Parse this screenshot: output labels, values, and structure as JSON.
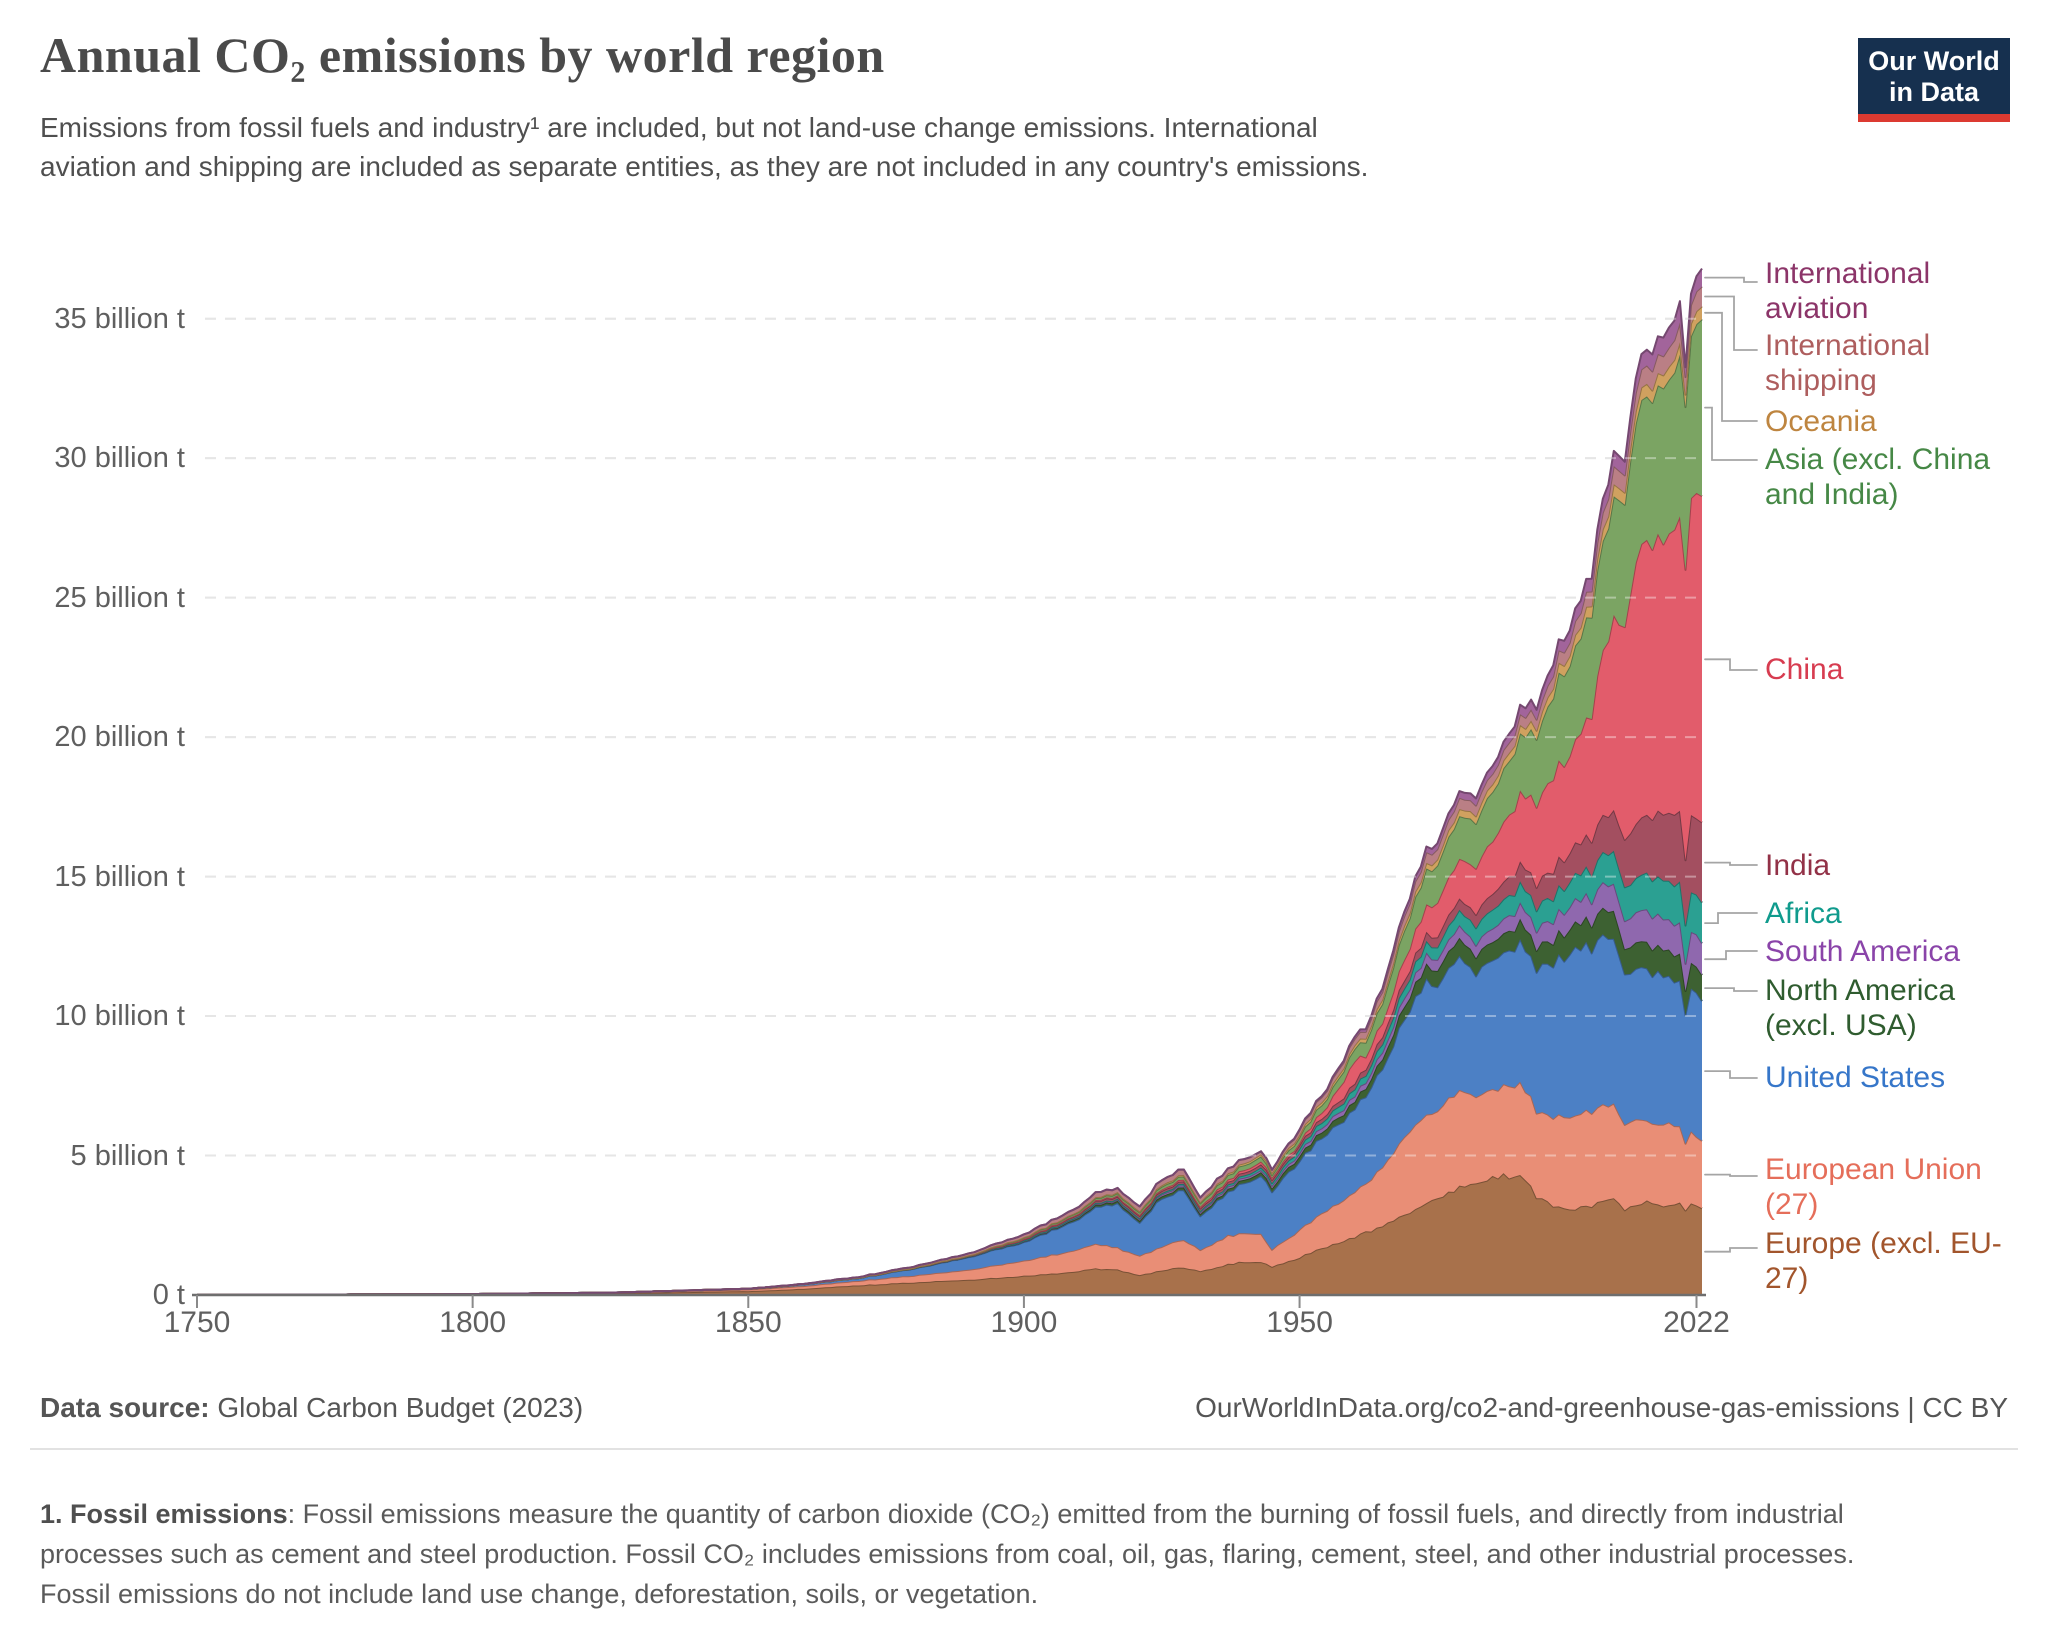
{
  "header": {
    "title": "Annual CO₂ emissions by world region",
    "subtitle": "Emissions from fossil fuels and industry¹ are included, but not land-use change emissions. International aviation and shipping are included as separate entities, as they are not included in any country's emissions."
  },
  "logo": {
    "line1": "Our World",
    "line2": "in Data",
    "bg_color": "#16304F",
    "accent_color": "#DC3A31"
  },
  "chart_data": {
    "type": "area",
    "stacked": true,
    "title": "Annual CO₂ emissions by world region",
    "xlabel": "",
    "ylabel": "",
    "unit": "billion t",
    "xlim": [
      1750,
      2023
    ],
    "ylim": [
      0,
      37.5
    ],
    "grid": "dashed-horizontal",
    "legend_position": "right",
    "xticks": [
      1750,
      1800,
      1850,
      1900,
      1950,
      2022
    ],
    "xtick_labels": [
      "1750",
      "1800",
      "1850",
      "1900",
      "1950",
      "2022"
    ],
    "yticks": [
      0,
      5,
      10,
      15,
      20,
      25,
      30,
      35
    ],
    "ytick_labels": [
      "0 t",
      "5 billion t",
      "10 billion t",
      "15 billion t",
      "20 billion t",
      "25 billion t",
      "30 billion t",
      "35 billion t"
    ],
    "x": [
      1750,
      1775,
      1800,
      1825,
      1850,
      1860,
      1870,
      1880,
      1890,
      1900,
      1910,
      1913,
      1917,
      1921,
      1924,
      1929,
      1932,
      1937,
      1940,
      1943,
      1945,
      1950,
      1955,
      1958,
      1960,
      1962,
      1965,
      1970,
      1973,
      1975,
      1979,
      1982,
      1985,
      1990,
      1993,
      1997,
      2000,
      2003,
      2005,
      2007,
      2009,
      2011,
      2013,
      2015,
      2017,
      2019,
      2020,
      2021,
      2022,
      2023
    ],
    "series": [
      {
        "name": "Europe (excl. EU-27)",
        "color": "#A8714B",
        "label_color": "#A2552C",
        "values": [
          0.009,
          0.015,
          0.028,
          0.06,
          0.14,
          0.22,
          0.35,
          0.45,
          0.55,
          0.68,
          0.85,
          0.95,
          0.9,
          0.7,
          0.85,
          1.0,
          0.85,
          1.1,
          1.2,
          1.2,
          1.0,
          1.35,
          1.75,
          1.95,
          2.1,
          2.25,
          2.5,
          3.0,
          3.3,
          3.5,
          3.9,
          3.95,
          4.2,
          4.35,
          3.55,
          3.15,
          3.1,
          3.2,
          3.3,
          3.4,
          3.1,
          3.3,
          3.3,
          3.2,
          3.2,
          3.25,
          3.05,
          3.25,
          3.2,
          3.05
        ]
      },
      {
        "name": "European Union (27)",
        "color": "#E98E76",
        "label_color": "#E56E5A",
        "values": [
          0.001,
          0.003,
          0.006,
          0.02,
          0.06,
          0.1,
          0.16,
          0.25,
          0.36,
          0.55,
          0.8,
          0.9,
          0.78,
          0.7,
          0.82,
          1.0,
          0.78,
          1.02,
          1.05,
          1.0,
          0.6,
          1.0,
          1.3,
          1.45,
          1.6,
          1.75,
          2.1,
          2.9,
          3.2,
          3.1,
          3.5,
          3.1,
          3.2,
          3.3,
          3.05,
          3.25,
          3.3,
          3.4,
          3.4,
          3.4,
          3.0,
          3.1,
          2.9,
          2.9,
          2.9,
          2.7,
          2.4,
          2.6,
          2.5,
          2.4
        ]
      },
      {
        "name": "United States",
        "color": "#4C80C5",
        "label_color": "#3676C9",
        "values": [
          0,
          0.0001,
          0.0004,
          0.004,
          0.02,
          0.06,
          0.1,
          0.25,
          0.45,
          0.66,
          1.1,
          1.3,
          1.55,
          1.15,
          1.65,
          1.8,
          1.2,
          1.6,
          1.8,
          2.1,
          2.1,
          2.5,
          2.8,
          2.85,
          3.0,
          3.1,
          3.5,
          4.4,
          4.8,
          4.5,
          4.9,
          4.4,
          4.6,
          5.1,
          5.15,
          5.6,
          5.9,
          5.9,
          6.0,
          6.0,
          5.4,
          5.5,
          5.4,
          5.4,
          5.2,
          5.3,
          4.7,
          5.0,
          5.1,
          4.9
        ]
      },
      {
        "name": "North America (excl. USA)",
        "color": "#3D6132",
        "label_color": "#2F5C2F",
        "values": [
          0,
          0,
          0,
          0.0005,
          0.001,
          0.003,
          0.005,
          0.01,
          0.02,
          0.03,
          0.06,
          0.07,
          0.08,
          0.07,
          0.09,
          0.1,
          0.08,
          0.1,
          0.12,
          0.13,
          0.14,
          0.18,
          0.22,
          0.25,
          0.27,
          0.29,
          0.35,
          0.5,
          0.55,
          0.57,
          0.65,
          0.64,
          0.65,
          0.75,
          0.78,
          0.85,
          0.92,
          0.93,
          0.97,
          1.0,
          0.93,
          0.95,
          0.95,
          0.95,
          0.95,
          0.95,
          0.85,
          0.9,
          0.93,
          0.93
        ]
      },
      {
        "name": "South America",
        "color": "#8F68AE",
        "label_color": "#8A44A9",
        "values": [
          0,
          0,
          0,
          0,
          0.001,
          0.001,
          0.002,
          0.005,
          0.008,
          0.015,
          0.03,
          0.04,
          0.04,
          0.05,
          0.06,
          0.07,
          0.06,
          0.08,
          0.08,
          0.08,
          0.09,
          0.12,
          0.16,
          0.18,
          0.2,
          0.21,
          0.25,
          0.32,
          0.38,
          0.4,
          0.45,
          0.45,
          0.48,
          0.6,
          0.65,
          0.78,
          0.82,
          0.85,
          0.9,
          0.97,
          1.0,
          1.1,
          1.15,
          1.15,
          1.1,
          1.1,
          1.0,
          1.1,
          1.15,
          1.15
        ]
      },
      {
        "name": "Africa",
        "color": "#2BA092",
        "label_color": "#109B8D",
        "values": [
          0,
          0,
          0,
          0,
          0,
          0.0005,
          0.001,
          0.003,
          0.005,
          0.012,
          0.025,
          0.03,
          0.035,
          0.04,
          0.047,
          0.055,
          0.05,
          0.07,
          0.08,
          0.09,
          0.1,
          0.15,
          0.2,
          0.23,
          0.25,
          0.27,
          0.3,
          0.37,
          0.42,
          0.45,
          0.55,
          0.62,
          0.68,
          0.75,
          0.78,
          0.84,
          0.9,
          1.0,
          1.1,
          1.15,
          1.2,
          1.25,
          1.3,
          1.35,
          1.4,
          1.45,
          1.35,
          1.4,
          1.45,
          1.5
        ]
      },
      {
        "name": "India",
        "color": "#A34F60",
        "label_color": "#923147",
        "values": [
          0,
          0,
          0,
          0.0002,
          0.001,
          0.002,
          0.003,
          0.006,
          0.01,
          0.04,
          0.06,
          0.07,
          0.08,
          0.08,
          0.08,
          0.09,
          0.09,
          0.1,
          0.1,
          0.11,
          0.11,
          0.13,
          0.15,
          0.18,
          0.2,
          0.22,
          0.26,
          0.3,
          0.33,
          0.37,
          0.41,
          0.47,
          0.57,
          0.73,
          0.85,
          1.0,
          1.1,
          1.2,
          1.3,
          1.5,
          1.7,
          1.9,
          2.1,
          2.3,
          2.45,
          2.6,
          2.4,
          2.7,
          2.8,
          2.95
        ]
      },
      {
        "name": "China",
        "color": "#E25C6B",
        "label_color": "#D73C50",
        "values": [
          0,
          0,
          0,
          0,
          0,
          0,
          0.001,
          0.002,
          0.005,
          0.02,
          0.03,
          0.03,
          0.04,
          0.04,
          0.05,
          0.06,
          0.06,
          0.08,
          0.09,
          0.1,
          0.08,
          0.08,
          0.25,
          0.6,
          0.78,
          0.44,
          0.5,
          0.8,
          1.0,
          1.2,
          1.45,
          1.65,
          1.9,
          2.5,
          2.85,
          3.45,
          3.6,
          4.5,
          5.9,
          6.9,
          7.7,
          9.3,
          10.0,
          9.9,
          10.0,
          10.5,
          10.7,
          11.3,
          11.4,
          11.9
        ]
      },
      {
        "name": "Asia (excl. China and India)",
        "color": "#7BA463",
        "label_color": "#468846",
        "values": [
          0,
          0,
          0,
          0,
          0,
          0.0005,
          0.001,
          0.003,
          0.01,
          0.04,
          0.06,
          0.07,
          0.08,
          0.09,
          0.1,
          0.12,
          0.12,
          0.16,
          0.18,
          0.18,
          0.1,
          0.2,
          0.3,
          0.38,
          0.45,
          0.52,
          0.7,
          1.1,
          1.3,
          1.35,
          1.55,
          1.62,
          1.75,
          2.1,
          2.45,
          3.1,
          3.4,
          3.7,
          4.0,
          4.3,
          4.5,
          4.9,
          5.2,
          5.4,
          5.6,
          5.9,
          5.7,
          5.9,
          6.1,
          6.3
        ]
      },
      {
        "name": "Oceania",
        "color": "#D0A15F",
        "label_color": "#BE8540",
        "values": [
          0,
          0,
          0,
          0,
          0.0005,
          0.001,
          0.003,
          0.006,
          0.012,
          0.02,
          0.03,
          0.035,
          0.04,
          0.045,
          0.05,
          0.055,
          0.05,
          0.06,
          0.07,
          0.08,
          0.08,
          0.09,
          0.11,
          0.12,
          0.13,
          0.14,
          0.15,
          0.18,
          0.2,
          0.22,
          0.25,
          0.27,
          0.28,
          0.3,
          0.32,
          0.36,
          0.38,
          0.4,
          0.42,
          0.44,
          0.44,
          0.45,
          0.44,
          0.45,
          0.46,
          0.45,
          0.44,
          0.44,
          0.45,
          0.46
        ]
      },
      {
        "name": "International shipping",
        "color": "#BA7F85",
        "label_color": "#AE5E5E",
        "values": [
          0,
          0,
          0,
          0,
          0.002,
          0.008,
          0.02,
          0.04,
          0.06,
          0.1,
          0.15,
          0.18,
          0.15,
          0.17,
          0.18,
          0.2,
          0.16,
          0.18,
          0.15,
          0.1,
          0.1,
          0.16,
          0.19,
          0.21,
          0.23,
          0.25,
          0.28,
          0.35,
          0.38,
          0.37,
          0.4,
          0.38,
          0.38,
          0.38,
          0.4,
          0.45,
          0.5,
          0.55,
          0.6,
          0.65,
          0.63,
          0.65,
          0.66,
          0.68,
          0.69,
          0.7,
          0.65,
          0.68,
          0.7,
          0.71
        ]
      },
      {
        "name": "International aviation",
        "color": "#A2649B",
        "label_color": "#8C3569",
        "values": [
          0,
          0,
          0,
          0,
          0,
          0,
          0,
          0,
          0,
          0,
          0,
          0,
          0,
          0,
          0.0005,
          0.001,
          0.001,
          0.003,
          0.005,
          0.008,
          0.01,
          0.03,
          0.05,
          0.06,
          0.08,
          0.09,
          0.12,
          0.17,
          0.2,
          0.21,
          0.24,
          0.25,
          0.28,
          0.33,
          0.35,
          0.4,
          0.45,
          0.46,
          0.5,
          0.53,
          0.5,
          0.53,
          0.56,
          0.65,
          0.7,
          0.75,
          0.35,
          0.4,
          0.55,
          0.65
        ]
      }
    ]
  },
  "footer": {
    "datasource_label": "Data source:",
    "datasource_value": " Global Carbon Budget (2023)",
    "link": "OurWorldInData.org/co2-and-greenhouse-gas-emissions | CC BY"
  },
  "footnote": {
    "bold": "1. Fossil emissions",
    "text": ": Fossil emissions measure the quantity of carbon dioxide (CO₂) emitted from the burning of fossil fuels, and directly from industrial processes such as cement and steel production. Fossil CO₂ includes emissions from coal, oil, gas, flaring, cement, steel, and other industrial processes. Fossil emissions do not include land use change, deforestation, soils, or vegetation."
  }
}
